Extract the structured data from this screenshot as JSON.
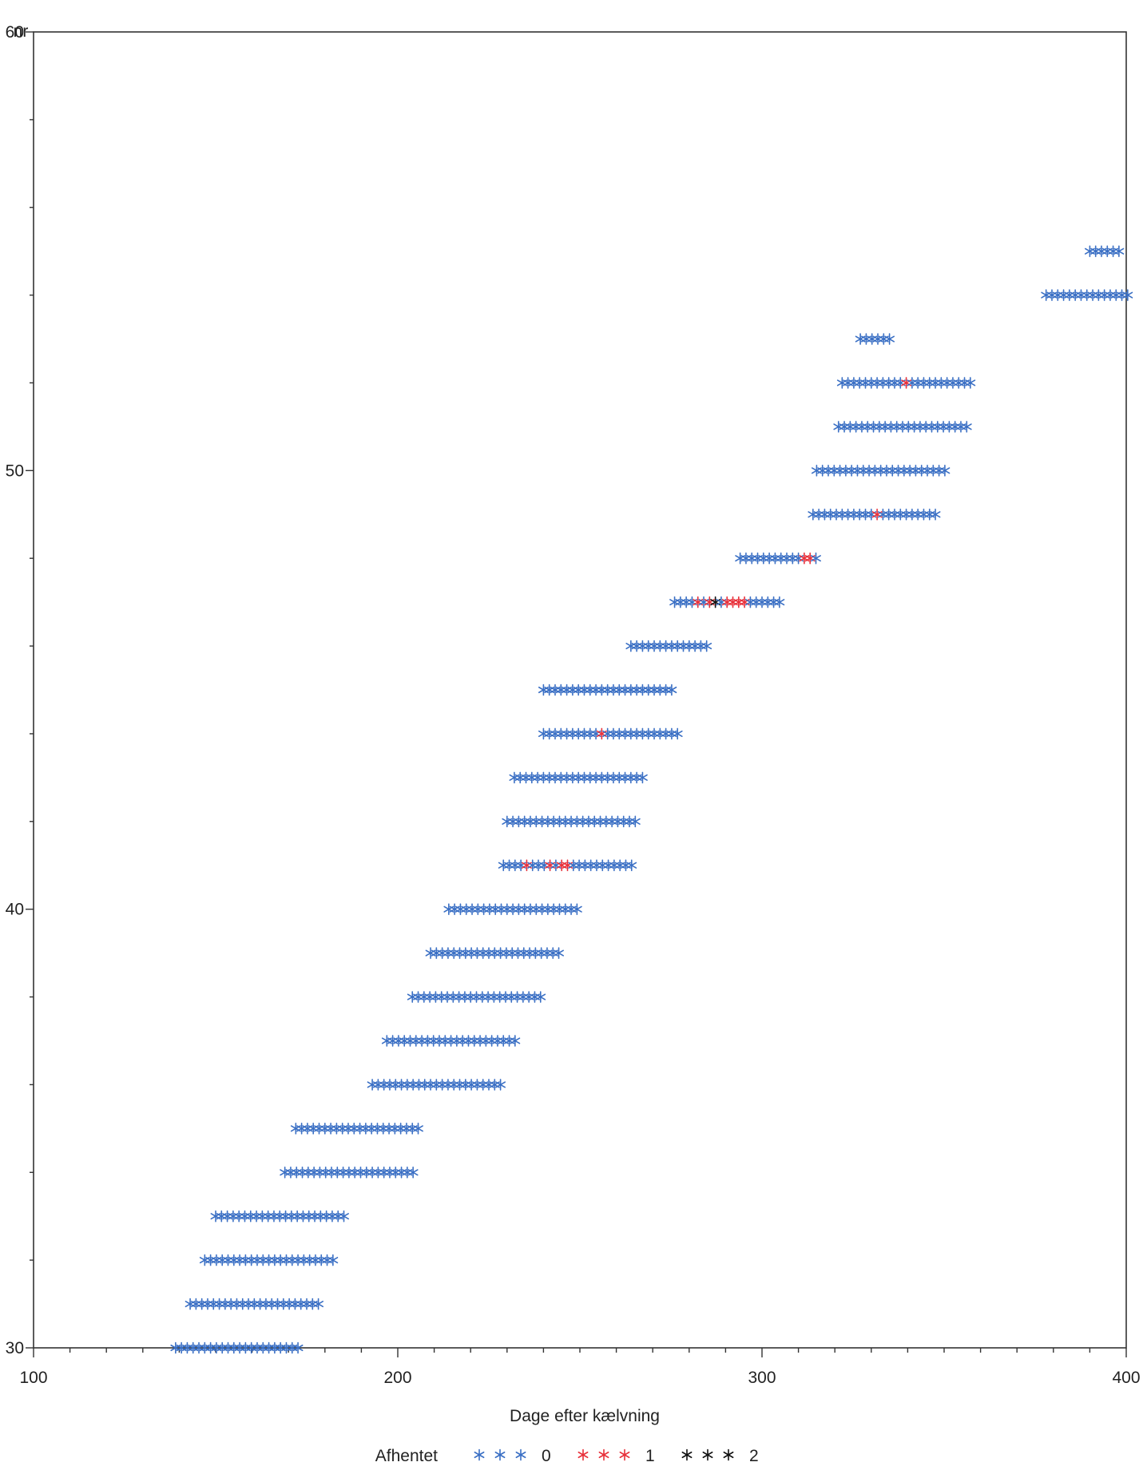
{
  "chart_data": {
    "type": "scatter",
    "title": "",
    "xlabel": "Dage efter kælvning",
    "ylabel": "nr",
    "xlim": [
      100,
      400
    ],
    "ylim": [
      30,
      60
    ],
    "x_ticks": [
      100,
      200,
      300,
      400
    ],
    "y_ticks": [
      30,
      40,
      50,
      60
    ],
    "x_tick_labels": [
      "100",
      "200",
      "300",
      "400"
    ],
    "y_tick_labels": [
      "30",
      "40",
      "50",
      "60"
    ],
    "x_minor_step": 10,
    "y_minor_step": 2,
    "grid": false,
    "marker": "star",
    "legend": {
      "title": "Afhentet",
      "placement": "bottom",
      "entries": [
        {
          "label": "0",
          "color": "#3a6fc4"
        },
        {
          "label": "1",
          "color": "#e8303a"
        },
        {
          "label": "2",
          "color": "#111111"
        }
      ]
    },
    "series_colors": {
      "0": "#3a6fc4",
      "1": "#e8303a",
      "2": "#111111"
    },
    "rows": [
      {
        "nr": 30,
        "start": 139,
        "end": 174,
        "step": 1.6
      },
      {
        "nr": 31,
        "start": 143,
        "end": 179,
        "step": 1.6
      },
      {
        "nr": 32,
        "start": 147,
        "end": 183,
        "step": 1.6
      },
      {
        "nr": 33,
        "start": 150,
        "end": 186,
        "step": 1.6
      },
      {
        "nr": 34,
        "start": 169,
        "end": 205,
        "step": 1.6
      },
      {
        "nr": 35,
        "start": 172,
        "end": 207,
        "step": 1.6
      },
      {
        "nr": 36,
        "start": 193,
        "end": 229,
        "step": 1.6
      },
      {
        "nr": 37,
        "start": 197,
        "end": 233,
        "step": 1.6
      },
      {
        "nr": 38,
        "start": 204,
        "end": 240,
        "step": 1.6
      },
      {
        "nr": 39,
        "start": 209,
        "end": 245,
        "step": 1.6
      },
      {
        "nr": 40,
        "start": 214,
        "end": 250,
        "step": 1.6
      },
      {
        "nr": 41,
        "start": 229,
        "end": 265,
        "step": 1.6,
        "special": [
          {
            "x": 236,
            "value": 1
          },
          {
            "x": 242,
            "value": 1
          },
          {
            "x": 245,
            "value": 1
          },
          {
            "x": 247,
            "value": 1
          }
        ]
      },
      {
        "nr": 42,
        "start": 230,
        "end": 266,
        "step": 1.6
      },
      {
        "nr": 43,
        "start": 232,
        "end": 268,
        "step": 1.6
      },
      {
        "nr": 44,
        "start": 240,
        "end": 277,
        "step": 1.6,
        "special": [
          {
            "x": 256,
            "value": 1
          }
        ]
      },
      {
        "nr": 45,
        "start": 240,
        "end": 276,
        "step": 1.6
      },
      {
        "nr": 46,
        "start": 264,
        "end": 286,
        "step": 1.6
      },
      {
        "nr": 47,
        "start": 276,
        "end": 306,
        "step": 1.6,
        "special": [
          {
            "x": 283,
            "value": 1
          },
          {
            "x": 286,
            "value": 1
          },
          {
            "x": 288,
            "value": 2
          },
          {
            "x": 290,
            "value": 1
          },
          {
            "x": 292,
            "value": 1
          },
          {
            "x": 294,
            "value": 1
          },
          {
            "x": 296,
            "value": 1
          }
        ]
      },
      {
        "nr": 48,
        "start": 294,
        "end": 316,
        "step": 1.6,
        "special": [
          {
            "x": 311,
            "value": 1
          },
          {
            "x": 312.5,
            "value": 1
          }
        ]
      },
      {
        "nr": 49,
        "start": 314,
        "end": 348,
        "step": 1.6,
        "special": [
          {
            "x": 332,
            "value": 1
          }
        ]
      },
      {
        "nr": 50,
        "start": 315,
        "end": 351,
        "step": 1.6
      },
      {
        "nr": 51,
        "start": 321,
        "end": 357,
        "step": 1.6
      },
      {
        "nr": 52,
        "start": 322,
        "end": 358,
        "step": 1.6,
        "special": [
          {
            "x": 339,
            "value": 1
          }
        ]
      },
      {
        "nr": 53,
        "start": 327,
        "end": 335,
        "step": 1.6
      },
      {
        "nr": 54,
        "start": 378,
        "end": 401,
        "step": 1.6
      },
      {
        "nr": 55,
        "start": 390,
        "end": 398,
        "step": 1.6
      }
    ]
  }
}
